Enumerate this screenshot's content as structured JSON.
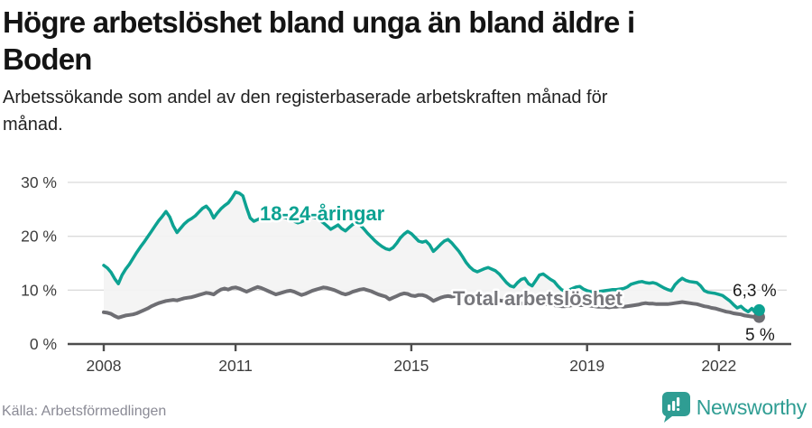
{
  "header": {
    "title_line1": "Högre arbetslöshet bland unga än bland äldre i",
    "title_line2": "Boden",
    "subtitle_line1": "Arbetssökande som andel av den registerbaserade arbetskraften månad för",
    "subtitle_line2": "månad."
  },
  "chart_data": {
    "type": "line",
    "x_start_year": 2008,
    "points_per_year": 12,
    "ylim": [
      0,
      30
    ],
    "grid": true,
    "y_tick_labels": [
      "30 %",
      "20 %",
      "10 %",
      "0 %"
    ],
    "x_tick_labels": [
      "2008",
      "2011",
      "2015",
      "2019",
      "2022"
    ],
    "x_tick_years": [
      2008,
      2011,
      2015,
      2019,
      2022
    ],
    "area_fill_color": "#f3f3f3",
    "series": [
      {
        "name": "18-24-åringar",
        "color": "#0da292",
        "end_label": "6,3 %",
        "end_value": 6.3,
        "values": [
          14.6,
          14.1,
          13.3,
          12.1,
          11.2,
          12.8,
          13.9,
          14.8,
          15.9,
          17.0,
          18.0,
          18.9,
          19.9,
          20.9,
          21.9,
          22.9,
          23.7,
          24.6,
          23.6,
          21.9,
          20.7,
          21.5,
          22.3,
          22.9,
          23.3,
          23.8,
          24.5,
          25.2,
          25.6,
          24.8,
          23.4,
          24.3,
          25.1,
          25.7,
          26.2,
          27.1,
          28.2,
          28.0,
          27.5,
          25.3,
          23.4,
          22.8,
          23.1,
          23.4,
          23.6,
          23.5,
          23.3,
          23.1,
          23.3,
          23.6,
          23.4,
          23.1,
          22.8,
          22.5,
          22.7,
          23.0,
          23.3,
          23.6,
          23.4,
          23.0,
          22.5,
          21.9,
          21.3,
          21.7,
          22.1,
          21.4,
          21.0,
          21.6,
          22.2,
          22.5,
          22.1,
          21.4,
          20.6,
          19.9,
          19.2,
          18.6,
          18.1,
          17.7,
          17.5,
          17.9,
          18.7,
          19.7,
          20.4,
          20.9,
          20.5,
          19.8,
          19.1,
          18.9,
          19.1,
          18.4,
          17.2,
          17.8,
          18.5,
          19.1,
          19.4,
          18.8,
          18.0,
          17.2,
          16.2,
          15.1,
          14.3,
          13.7,
          13.4,
          13.7,
          14.0,
          14.2,
          13.9,
          13.6,
          13.0,
          12.2,
          11.4,
          10.8,
          10.6,
          11.4,
          12.0,
          12.2,
          11.2,
          10.8,
          11.8,
          12.8,
          13.0,
          12.5,
          12.0,
          11.6,
          10.8,
          10.1,
          9.8,
          10.0,
          10.3,
          10.6,
          10.7,
          10.2,
          9.9,
          9.7,
          9.6,
          9.7,
          9.8,
          9.9,
          10.0,
          10.1,
          10.1,
          10.2,
          10.3,
          10.6,
          11.1,
          11.3,
          11.5,
          11.6,
          11.4,
          11.3,
          11.4,
          11.2,
          10.8,
          10.4,
          10.1,
          9.9,
          11.0,
          11.7,
          12.2,
          11.8,
          11.6,
          11.5,
          11.4,
          10.8,
          9.9,
          9.6,
          9.5,
          9.4,
          9.2,
          9.0,
          8.5,
          8.0,
          7.3,
          6.7,
          7.0,
          6.4,
          6.0,
          6.6,
          5.8,
          6.3
        ]
      },
      {
        "name": "Total arbetslöshet",
        "color": "#6e6e73",
        "end_label": "5 %",
        "end_value": 5.0,
        "values": [
          5.9,
          5.8,
          5.6,
          5.2,
          4.9,
          5.1,
          5.3,
          5.4,
          5.5,
          5.7,
          6.0,
          6.3,
          6.6,
          7.0,
          7.3,
          7.6,
          7.8,
          8.0,
          8.1,
          8.2,
          8.1,
          8.3,
          8.5,
          8.6,
          8.7,
          8.9,
          9.1,
          9.3,
          9.5,
          9.4,
          9.2,
          9.7,
          10.1,
          10.3,
          10.1,
          10.4,
          10.5,
          10.3,
          10.0,
          9.7,
          10.0,
          10.3,
          10.6,
          10.4,
          10.1,
          9.8,
          9.5,
          9.2,
          9.4,
          9.6,
          9.8,
          9.9,
          9.7,
          9.4,
          9.1,
          9.3,
          9.6,
          9.9,
          10.1,
          10.3,
          10.5,
          10.4,
          10.2,
          10.0,
          9.7,
          9.4,
          9.2,
          9.4,
          9.7,
          9.9,
          10.1,
          10.2,
          10.0,
          9.8,
          9.5,
          9.2,
          9.0,
          8.8,
          8.3,
          8.6,
          8.9,
          9.2,
          9.4,
          9.3,
          9.0,
          8.9,
          9.1,
          9.1,
          8.9,
          8.5,
          8.0,
          8.3,
          8.6,
          8.8,
          8.9,
          8.8,
          8.9,
          8.8,
          8.7,
          8.5,
          8.4,
          8.2,
          8.1,
          8.2,
          8.3,
          8.4,
          8.3,
          8.2,
          8.1,
          8.0,
          7.9,
          7.8,
          7.7,
          7.6,
          7.5,
          7.6,
          7.7,
          7.8,
          7.7,
          7.6,
          7.5,
          7.4,
          7.3,
          7.2,
          7.1,
          7.0,
          7.0,
          7.1,
          7.2,
          7.2,
          7.2,
          7.2,
          7.2,
          7.1,
          7.0,
          6.9,
          6.9,
          6.9,
          6.8,
          6.9,
          6.9,
          7.0,
          6.9,
          7.0,
          7.1,
          7.2,
          7.3,
          7.5,
          7.6,
          7.5,
          7.5,
          7.4,
          7.4,
          7.4,
          7.4,
          7.5,
          7.6,
          7.7,
          7.8,
          7.7,
          7.6,
          7.5,
          7.4,
          7.2,
          7.0,
          6.9,
          6.7,
          6.6,
          6.4,
          6.2,
          6.0,
          5.9,
          5.7,
          5.6,
          5.5,
          5.3,
          5.2,
          5.1,
          5.0,
          5.0
        ]
      }
    ]
  },
  "footer": {
    "source": "Källa: Arbetsförmedlingen",
    "brand": "Newsworthy"
  }
}
